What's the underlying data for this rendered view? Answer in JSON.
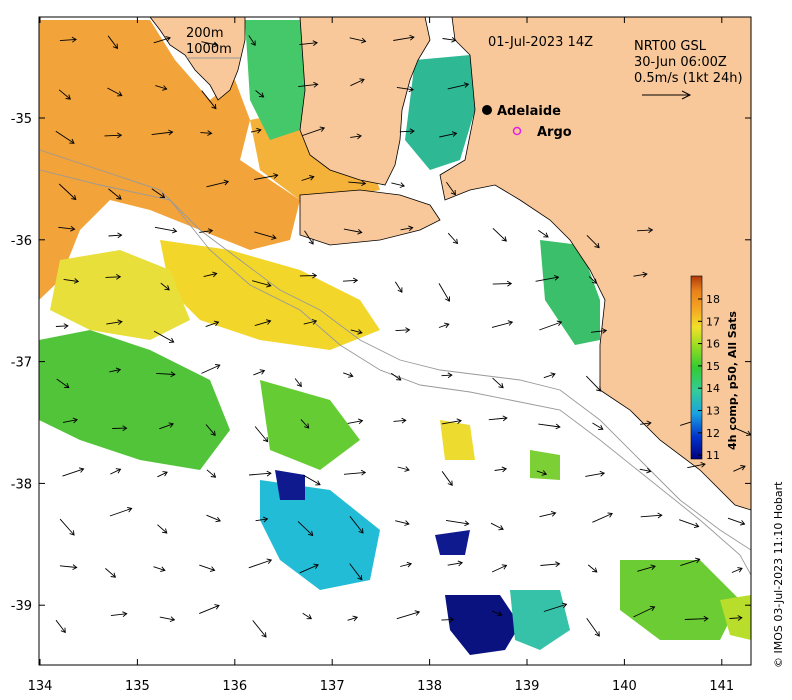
{
  "map": {
    "date_label": "01-Jul-2023 14Z",
    "current_source": "NRT00 GSL",
    "current_time": "30-Jun 06:00Z",
    "arrow_scale_label": "0.5m/s (1kt 24h)",
    "isobath_labels": [
      "200m",
      "1000m"
    ],
    "places": [
      {
        "name": "Adelaide",
        "symbol": "filled-circle"
      },
      {
        "name": "Argo",
        "symbol": "magenta-open-circle"
      }
    ],
    "x_ticks": [
      "134",
      "135",
      "136",
      "137",
      "138",
      "139",
      "140",
      "141"
    ],
    "y_ticks": [
      "-35",
      "-36",
      "-37",
      "-38",
      "-39"
    ],
    "colorbar": {
      "title": "4h comp, p50, All Sats",
      "ticks": [
        "18",
        "17",
        "16",
        "15",
        "14",
        "13",
        "12",
        "11"
      ],
      "range": [
        11,
        19
      ],
      "colors": [
        "#00007f",
        "#0033cc",
        "#1aa3e0",
        "#33cc99",
        "#33cc33",
        "#99dd22",
        "#f2e02a",
        "#f5a623",
        "#e8801a",
        "#b03a0a"
      ]
    },
    "credit": "© IMOS 03-Jul-2023 11:10 Hobart",
    "colors": {
      "land": "#f8c89a",
      "background": "#ffffff"
    }
  }
}
